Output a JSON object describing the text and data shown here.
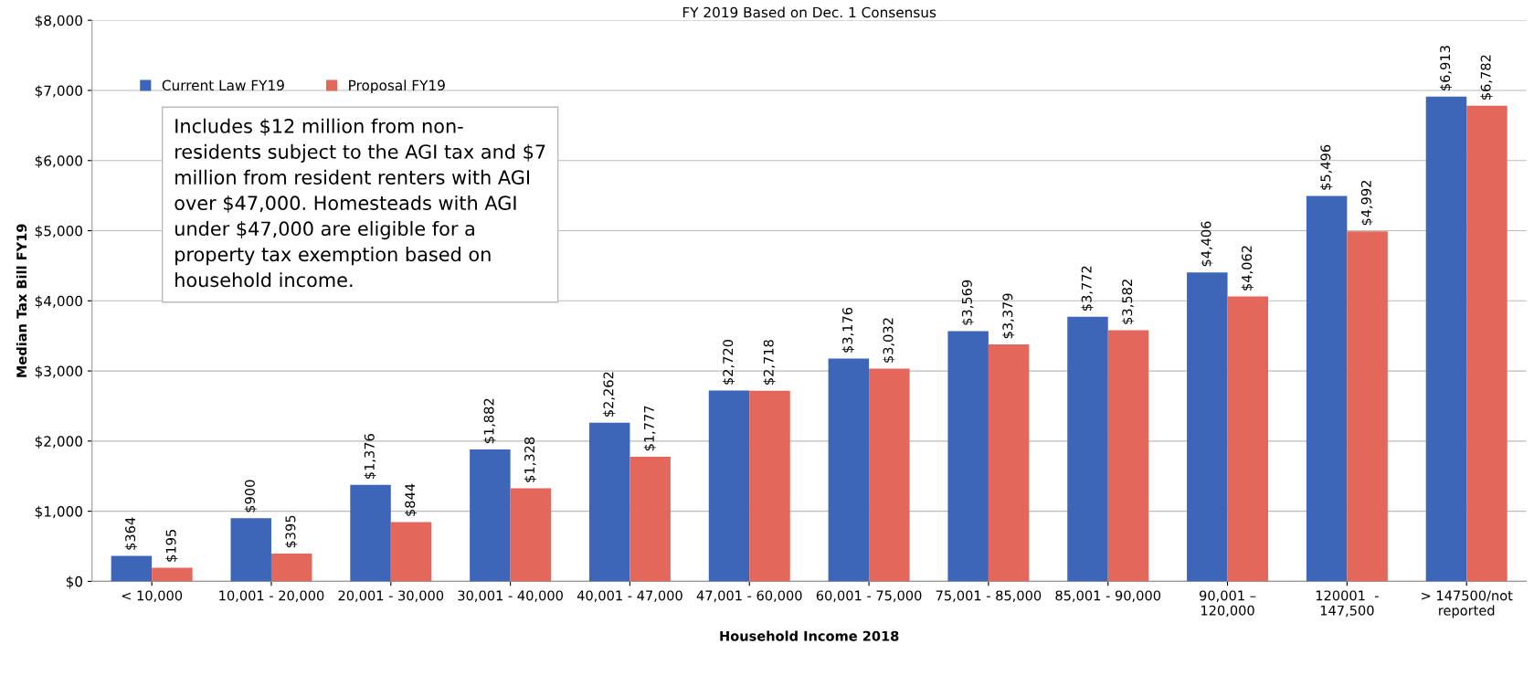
{
  "chart_data": {
    "type": "bar",
    "title": "FY 2019 Based on Dec. 1 Consensus",
    "xlabel": "Household Income 2018",
    "ylabel": "Median Tax Bill FY19",
    "categories": [
      "< 10,000",
      "10,001 - 20,000",
      "20,001 - 30,000",
      "30,001 - 40,000",
      "40,001 - 47,000",
      "47,001 - 60,000",
      "60,001 - 75,000",
      "75,001 - 85,000",
      "85,001 - 90,000",
      "90,001 –\n120,000",
      "120001  -\n147,500",
      "> 147500/not\nreported"
    ],
    "series": [
      {
        "name": "Current Law FY19",
        "color": "#3d66b8",
        "values": [
          364,
          900,
          1376,
          1882,
          2262,
          2720,
          3176,
          3569,
          3772,
          4406,
          5496,
          6913
        ],
        "value_labels": [
          "$364",
          "$900",
          "$1,376",
          "$1,882",
          "$2,262",
          "$2,720",
          "$3,176",
          "$3,569",
          "$3,772",
          "$4,406",
          "$5,496",
          "$6,913"
        ]
      },
      {
        "name": "Proposal FY19",
        "color": "#e4675c",
        "values": [
          195,
          395,
          844,
          1328,
          1777,
          2718,
          3032,
          3379,
          3582,
          4062,
          4992,
          6782
        ],
        "value_labels": [
          "$195",
          "$395",
          "$844",
          "$1,328",
          "$1,777",
          "$2,718",
          "$3,032",
          "$3,379",
          "$3,582",
          "$4,062",
          "$4,992",
          "$6,782"
        ]
      }
    ],
    "ylim": [
      0,
      8000
    ],
    "yticks": [
      {
        "value": 0,
        "label": "$0"
      },
      {
        "value": 1000,
        "label": "$1,000"
      },
      {
        "value": 2000,
        "label": "$2,000"
      },
      {
        "value": 3000,
        "label": "$3,000"
      },
      {
        "value": 4000,
        "label": "$4,000"
      },
      {
        "value": 5000,
        "label": "$5,000"
      },
      {
        "value": 6000,
        "label": "$6,000"
      },
      {
        "value": 7000,
        "label": "$7,000"
      },
      {
        "value": 8000,
        "label": "$8,000"
      }
    ],
    "grid": "y",
    "legend": "top left",
    "annotations": [
      "Includes $12 million from non-\nresidents subject to the AGI tax and $7\nmillion from resident renters with AGI\nover $47,000. Homesteads with AGI\nunder $47,000 are eligible for a\nproperty tax exemption based on\nhousehold income."
    ]
  }
}
